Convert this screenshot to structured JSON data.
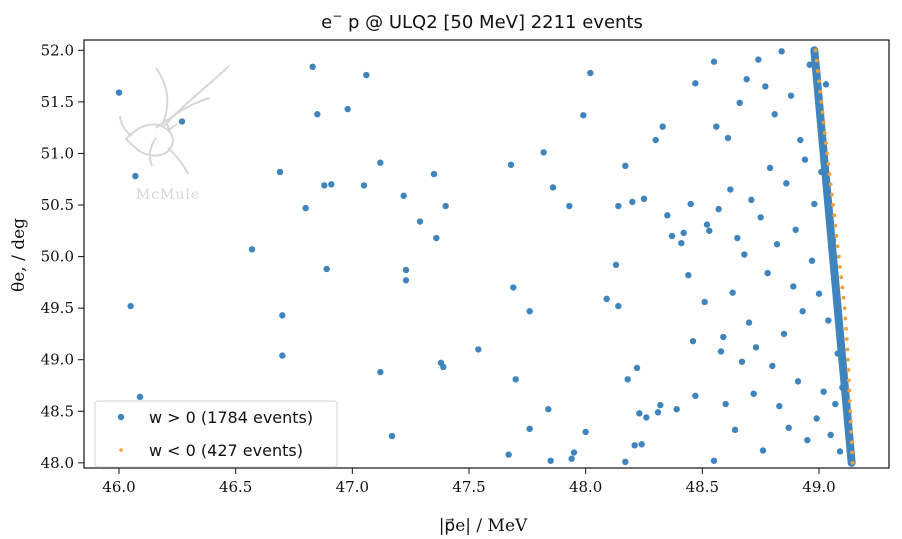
{
  "chart_data": {
    "type": "scatter",
    "title": "e⁻p @ ULQ2   [50 MeV]   2211 events",
    "xlabel": "|p⃗e| / MeV",
    "ylabel": "θe, / deg",
    "xlim": [
      45.85,
      49.3
    ],
    "ylim": [
      47.95,
      52.1
    ],
    "xticks": [
      46.0,
      46.5,
      47.0,
      47.5,
      48.0,
      48.5,
      49.0
    ],
    "yticks": [
      48.0,
      48.5,
      49.0,
      49.5,
      50.0,
      50.5,
      51.0,
      51.5,
      52.0
    ],
    "xtick_labels": [
      "46.0",
      "46.5",
      "47.0",
      "47.5",
      "48.0",
      "48.5",
      "49.0"
    ],
    "ytick_labels": [
      "48.0",
      "48.5",
      "49.0",
      "49.5",
      "50.0",
      "50.5",
      "51.0",
      "51.5",
      "52.0"
    ],
    "legend": {
      "placement": "lower-left",
      "entries": [
        {
          "label": "w > 0 (1784 events)",
          "color": "#3f84bd"
        },
        {
          "label": "w < 0 (427 events)",
          "color": "#f0a23a"
        }
      ]
    },
    "series": [
      {
        "name": "w > 0 (1784 events)",
        "color": "#3f84bd",
        "points": [
          [
            46.0,
            51.59
          ],
          [
            46.07,
            50.78
          ],
          [
            46.05,
            49.52
          ],
          [
            46.09,
            48.64
          ],
          [
            46.27,
            51.31
          ],
          [
            46.57,
            50.07
          ],
          [
            46.69,
            50.82
          ],
          [
            46.7,
            49.43
          ],
          [
            46.7,
            49.04
          ],
          [
            46.8,
            50.47
          ],
          [
            46.83,
            51.84
          ],
          [
            46.85,
            51.38
          ],
          [
            46.88,
            50.69
          ],
          [
            46.89,
            49.88
          ],
          [
            46.91,
            50.7
          ],
          [
            46.98,
            51.43
          ],
          [
            47.05,
            50.69
          ],
          [
            47.06,
            51.76
          ],
          [
            47.12,
            50.91
          ],
          [
            47.12,
            48.88
          ],
          [
            47.17,
            48.26
          ],
          [
            47.22,
            50.59
          ],
          [
            47.23,
            49.87
          ],
          [
            47.23,
            49.77
          ],
          [
            47.29,
            50.34
          ],
          [
            47.35,
            50.8
          ],
          [
            47.36,
            50.18
          ],
          [
            47.38,
            48.97
          ],
          [
            47.39,
            48.93
          ],
          [
            47.4,
            50.49
          ],
          [
            47.54,
            49.1
          ],
          [
            47.67,
            48.08
          ],
          [
            47.68,
            50.89
          ],
          [
            47.69,
            49.7
          ],
          [
            47.7,
            48.81
          ],
          [
            47.76,
            49.47
          ],
          [
            47.76,
            48.33
          ],
          [
            47.82,
            51.01
          ],
          [
            47.84,
            48.52
          ],
          [
            47.85,
            48.02
          ],
          [
            47.86,
            50.67
          ],
          [
            47.93,
            50.49
          ],
          [
            47.94,
            48.04
          ],
          [
            47.95,
            48.1
          ],
          [
            47.99,
            51.37
          ],
          [
            48.0,
            48.3
          ],
          [
            48.02,
            51.78
          ],
          [
            48.09,
            49.59
          ],
          [
            48.13,
            49.92
          ],
          [
            48.14,
            50.49
          ],
          [
            48.14,
            49.52
          ],
          [
            48.17,
            48.01
          ],
          [
            48.17,
            50.88
          ],
          [
            48.18,
            48.81
          ],
          [
            48.2,
            50.53
          ],
          [
            48.21,
            48.17
          ],
          [
            48.22,
            48.92
          ],
          [
            48.23,
            48.48
          ],
          [
            48.24,
            48.18
          ],
          [
            48.25,
            50.56
          ],
          [
            48.26,
            48.44
          ],
          [
            48.3,
            51.13
          ],
          [
            48.31,
            48.49
          ],
          [
            48.32,
            48.56
          ],
          [
            48.33,
            51.26
          ],
          [
            48.35,
            50.4
          ],
          [
            48.37,
            50.2
          ],
          [
            48.39,
            48.52
          ],
          [
            48.41,
            50.13
          ],
          [
            48.42,
            50.23
          ],
          [
            48.44,
            49.82
          ],
          [
            48.45,
            50.51
          ],
          [
            48.46,
            49.18
          ],
          [
            48.47,
            51.68
          ],
          [
            48.47,
            48.65
          ],
          [
            48.51,
            49.56
          ],
          [
            48.52,
            50.31
          ],
          [
            48.53,
            50.25
          ],
          [
            48.55,
            51.89
          ],
          [
            48.55,
            48.02
          ],
          [
            48.56,
            51.26
          ],
          [
            48.57,
            50.46
          ],
          [
            48.58,
            49.08
          ],
          [
            48.59,
            49.22
          ],
          [
            48.6,
            48.57
          ],
          [
            48.61,
            51.15
          ],
          [
            48.62,
            50.65
          ],
          [
            48.63,
            49.65
          ],
          [
            48.64,
            48.32
          ],
          [
            48.65,
            50.18
          ],
          [
            48.66,
            51.49
          ],
          [
            48.67,
            48.98
          ],
          [
            48.68,
            50.02
          ],
          [
            48.69,
            51.72
          ],
          [
            48.7,
            49.36
          ],
          [
            48.71,
            50.55
          ],
          [
            48.72,
            48.67
          ],
          [
            48.73,
            49.12
          ],
          [
            48.74,
            51.91
          ],
          [
            48.75,
            50.38
          ],
          [
            48.76,
            48.12
          ],
          [
            48.77,
            51.65
          ],
          [
            48.78,
            49.84
          ],
          [
            48.79,
            50.86
          ],
          [
            48.8,
            48.94
          ],
          [
            48.81,
            51.38
          ],
          [
            48.82,
            50.12
          ],
          [
            48.83,
            48.55
          ],
          [
            48.84,
            51.99
          ],
          [
            48.85,
            49.25
          ],
          [
            48.86,
            50.71
          ],
          [
            48.87,
            48.34
          ],
          [
            48.88,
            51.56
          ],
          [
            48.89,
            49.71
          ],
          [
            48.9,
            50.26
          ],
          [
            48.91,
            48.79
          ],
          [
            48.92,
            51.13
          ],
          [
            48.93,
            49.47
          ],
          [
            48.94,
            50.94
          ],
          [
            48.95,
            48.22
          ],
          [
            48.96,
            51.86
          ],
          [
            48.97,
            49.96
          ],
          [
            48.98,
            50.51
          ],
          [
            48.99,
            48.43
          ],
          [
            49.0,
            49.64
          ],
          [
            49.01,
            50.82
          ],
          [
            49.02,
            48.69
          ],
          [
            49.03,
            51.67
          ],
          [
            49.04,
            49.38
          ],
          [
            49.05,
            48.27
          ],
          [
            49.06,
            50.16
          ],
          [
            49.07,
            48.57
          ],
          [
            49.08,
            49.06
          ],
          [
            49.09,
            48.11
          ],
          [
            49.1,
            48.73
          ]
        ]
      },
      {
        "name": "w < 0 (427 events)",
        "color": "#f0a23a",
        "points": [
          [
            48.985,
            52.0
          ],
          [
            48.99,
            51.9
          ],
          [
            48.995,
            51.8
          ],
          [
            49.0,
            51.7
          ],
          [
            49.005,
            51.6
          ],
          [
            49.01,
            51.5
          ],
          [
            49.015,
            51.4
          ],
          [
            49.02,
            51.3
          ],
          [
            49.025,
            51.2
          ],
          [
            49.03,
            51.1
          ],
          [
            49.035,
            51.0
          ],
          [
            49.04,
            50.9
          ],
          [
            49.045,
            50.8
          ],
          [
            49.05,
            50.7
          ],
          [
            49.055,
            50.6
          ],
          [
            49.06,
            50.5
          ],
          [
            49.065,
            50.4
          ],
          [
            49.07,
            50.3
          ],
          [
            49.075,
            50.2
          ],
          [
            49.08,
            50.1
          ],
          [
            49.085,
            50.0
          ],
          [
            49.09,
            49.9
          ],
          [
            49.095,
            49.8
          ],
          [
            49.1,
            49.7
          ],
          [
            49.105,
            49.6
          ],
          [
            49.11,
            49.5
          ],
          [
            49.113,
            49.4
          ],
          [
            49.116,
            49.3
          ],
          [
            49.119,
            49.2
          ],
          [
            49.122,
            49.1
          ],
          [
            49.124,
            49.0
          ],
          [
            49.126,
            48.9
          ],
          [
            49.128,
            48.8
          ],
          [
            49.13,
            48.7
          ],
          [
            49.132,
            48.6
          ],
          [
            49.134,
            48.5
          ],
          [
            49.136,
            48.4
          ],
          [
            49.138,
            48.3
          ],
          [
            49.14,
            48.2
          ],
          [
            49.142,
            48.1
          ],
          [
            49.144,
            48.0
          ]
        ]
      }
    ],
    "band": {
      "name": "w > 0 band",
      "color": "#3f84bd",
      "top": [
        48.98,
        52.0
      ],
      "bottom": [
        49.14,
        48.0
      ]
    }
  },
  "logo": {
    "text": "McMule"
  }
}
